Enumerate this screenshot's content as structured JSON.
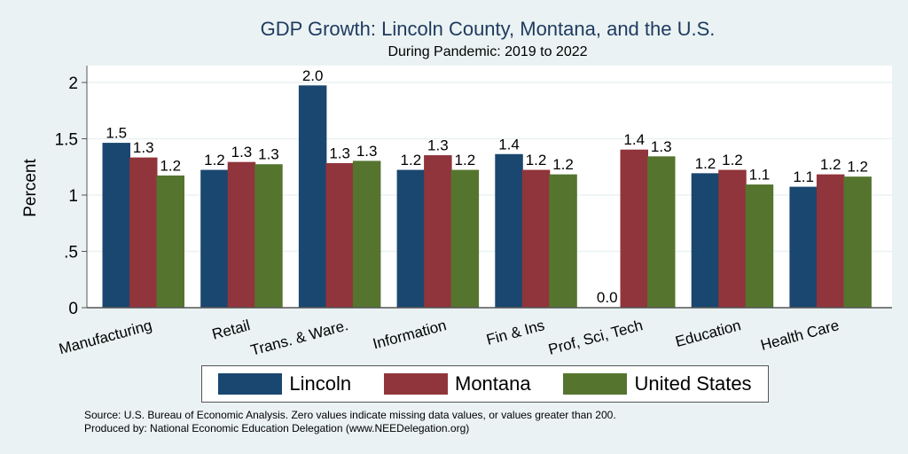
{
  "chart_data": {
    "type": "bar",
    "title": "GDP Growth: Lincoln County, Montana, and the U.S.",
    "subtitle": "During Pandemic: 2019 to 2022",
    "ylabel": "Percent",
    "xlabel": "",
    "ylim": [
      0,
      2.15
    ],
    "yticks": [
      {
        "v": 0,
        "label": "0"
      },
      {
        "v": 0.5,
        "label": ".5"
      },
      {
        "v": 1,
        "label": "1"
      },
      {
        "v": 1.5,
        "label": "1.5"
      },
      {
        "v": 2,
        "label": "2"
      }
    ],
    "grid": true,
    "categories": [
      "Manufacturing",
      "Retail",
      "Trans. & Ware.",
      "Information",
      "Fin & Ins",
      "Prof, Sci, Tech",
      "Education",
      "Health Care"
    ],
    "series": [
      {
        "name": "Lincoln",
        "color": "#1a476f",
        "values": [
          1.46,
          1.22,
          1.97,
          1.22,
          1.36,
          0.0,
          1.19,
          1.07
        ],
        "labels": [
          "1.5",
          "1.2",
          "2.0",
          "1.2",
          "1.4",
          "0.0",
          "1.2",
          "1.1"
        ]
      },
      {
        "name": "Montana",
        "color": "#90353b",
        "values": [
          1.33,
          1.29,
          1.28,
          1.35,
          1.22,
          1.4,
          1.22,
          1.18
        ],
        "labels": [
          "1.3",
          "1.3",
          "1.3",
          "1.3",
          "1.2",
          "1.4",
          "1.2",
          "1.2"
        ]
      },
      {
        "name": "United States",
        "color": "#55752f",
        "values": [
          1.17,
          1.27,
          1.3,
          1.22,
          1.18,
          1.34,
          1.09,
          1.16
        ],
        "labels": [
          "1.2",
          "1.3",
          "1.3",
          "1.2",
          "1.2",
          "1.3",
          "1.1",
          "1.2"
        ]
      }
    ],
    "legend_position": "bottom"
  },
  "footer": {
    "source": "Source: U.S. Bureau of Economic Analysis. Zero values indicate missing data values, or values greater than 200.",
    "produced": "Produced by: National Economic Education Delegation (www.NEEDelegation.org)"
  }
}
